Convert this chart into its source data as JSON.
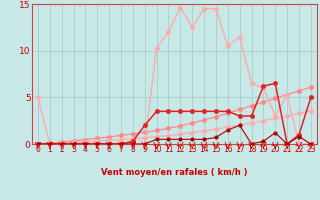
{
  "xlabel": "Vent moyen/en rafales ( km/h )",
  "xlim": [
    0,
    23
  ],
  "ylim": [
    0,
    15
  ],
  "yticks": [
    0,
    5,
    10,
    15
  ],
  "xticks": [
    0,
    1,
    2,
    3,
    4,
    5,
    6,
    7,
    8,
    9,
    10,
    11,
    12,
    13,
    14,
    15,
    16,
    17,
    18,
    19,
    20,
    21,
    22,
    23
  ],
  "background_color": "#c8e8e8",
  "grid_color": "#aacccc",
  "line_colors": {
    "gust_light": "#ffaaaa",
    "mean_light": "#ff9999",
    "trend1": "#ff8888",
    "trend2": "#ffaaaa",
    "mean_dark": "#dd2222",
    "min_dark": "#aa0000"
  },
  "gust_x": [
    0,
    1,
    2,
    3,
    4,
    5,
    6,
    7,
    8,
    9,
    10,
    11,
    12,
    13,
    14,
    15,
    16,
    17,
    18,
    19,
    20,
    21,
    22,
    23
  ],
  "gust_y": [
    5,
    0,
    0,
    0,
    0,
    0,
    0,
    0,
    0,
    0,
    10.3,
    12.0,
    14.6,
    12.5,
    14.5,
    14.5,
    10.5,
    11.5,
    6.5,
    6.0,
    3.0,
    5.2,
    0,
    0
  ],
  "mean_x": [
    0,
    1,
    2,
    3,
    4,
    5,
    6,
    7,
    8,
    9,
    10,
    11,
    12,
    13,
    14,
    15,
    16,
    17,
    18,
    19,
    20,
    21,
    22,
    23
  ],
  "mean_y": [
    0,
    0,
    0,
    0,
    0,
    0,
    0,
    0,
    0.3,
    2.0,
    3.5,
    3.5,
    3.5,
    3.5,
    3.5,
    3.5,
    3.5,
    3.0,
    3.0,
    6.2,
    6.5,
    0,
    1.0,
    5.0
  ],
  "min_x": [
    0,
    1,
    2,
    3,
    4,
    5,
    6,
    7,
    8,
    9,
    10,
    11,
    12,
    13,
    14,
    15,
    16,
    17,
    18,
    19,
    20,
    21,
    22,
    23
  ],
  "min_y": [
    0,
    0,
    0,
    0,
    0,
    0,
    0,
    0,
    0,
    0,
    0.5,
    0.5,
    0.5,
    0.5,
    0.5,
    0.7,
    1.5,
    2.0,
    0,
    0.3,
    1.2,
    0,
    0.8,
    0
  ],
  "trend_up1_x": [
    0,
    1,
    2,
    3,
    4,
    5,
    6,
    7,
    8,
    9,
    10,
    11,
    12,
    13,
    14,
    15,
    16,
    17,
    18,
    19,
    20,
    21,
    22,
    23
  ],
  "trend_up1_y": [
    0,
    0.1,
    0.22,
    0.35,
    0.48,
    0.62,
    0.76,
    0.92,
    1.08,
    1.25,
    1.45,
    1.68,
    1.95,
    2.25,
    2.58,
    2.93,
    3.3,
    3.7,
    4.1,
    4.5,
    4.9,
    5.3,
    5.7,
    6.1
  ],
  "trend_up2_x": [
    0,
    1,
    2,
    3,
    4,
    5,
    6,
    7,
    8,
    9,
    10,
    11,
    12,
    13,
    14,
    15,
    16,
    17,
    18,
    19,
    20,
    21,
    22,
    23
  ],
  "trend_up2_y": [
    0,
    0.05,
    0.12,
    0.18,
    0.25,
    0.32,
    0.4,
    0.48,
    0.57,
    0.67,
    0.78,
    0.9,
    1.05,
    1.22,
    1.4,
    1.6,
    1.8,
    2.02,
    2.25,
    2.5,
    2.75,
    3.0,
    3.28,
    3.55
  ]
}
